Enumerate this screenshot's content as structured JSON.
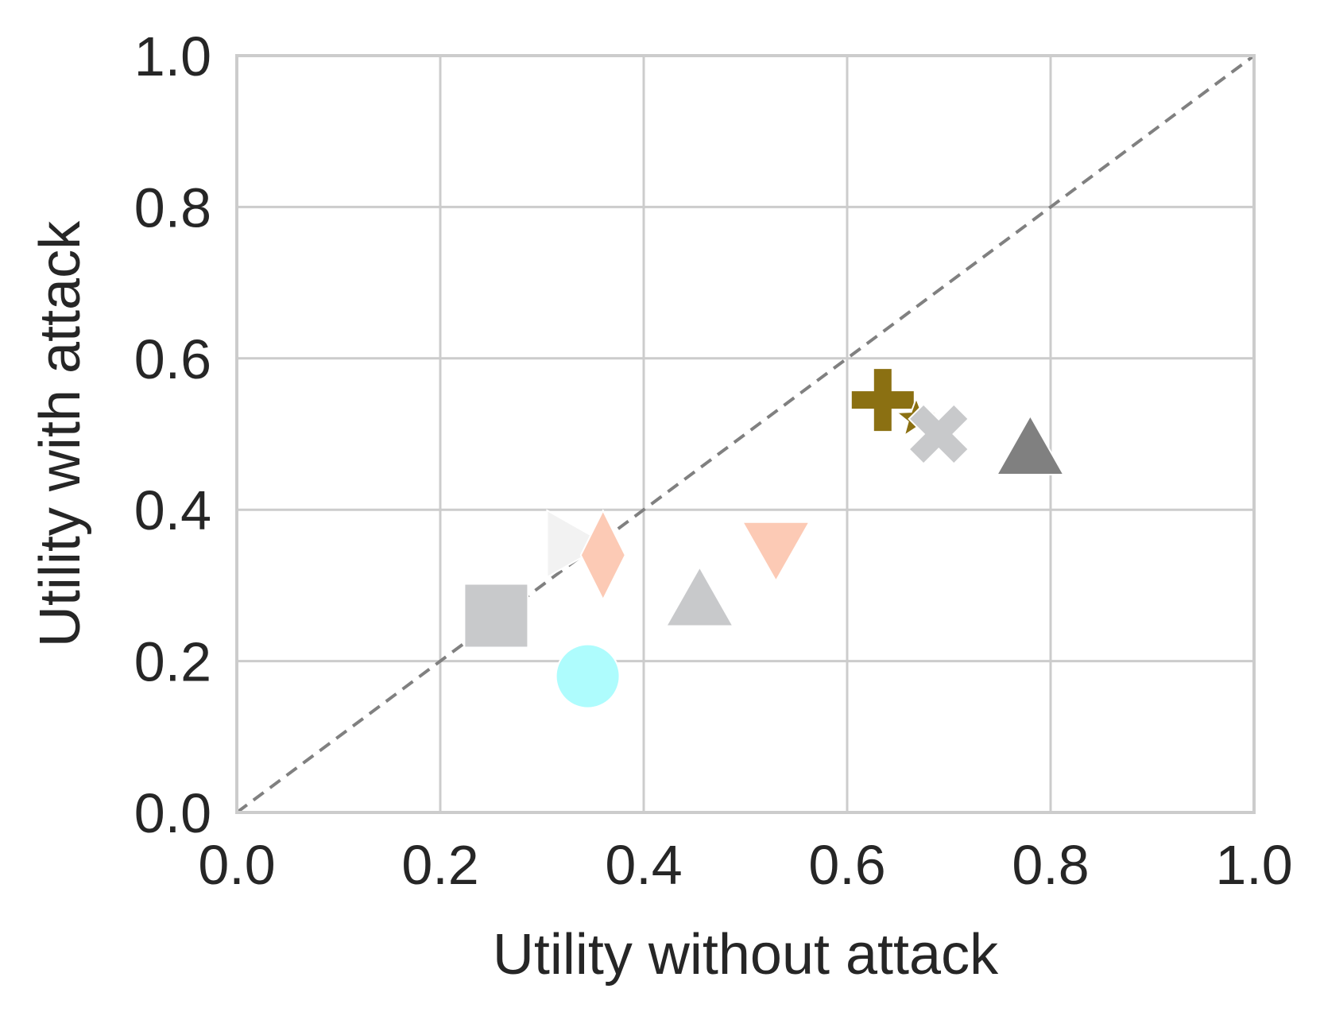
{
  "chart_data": {
    "type": "scatter",
    "xlabel": "Utility without attack",
    "ylabel": "Utility with attack",
    "xlim": [
      0.0,
      1.0
    ],
    "ylim": [
      0.0,
      1.0
    ],
    "xticks": [
      "0.0",
      "0.2",
      "0.4",
      "0.6",
      "0.8",
      "1.0"
    ],
    "yticks": [
      "0.0",
      "0.2",
      "0.4",
      "0.6",
      "0.8",
      "1.0"
    ],
    "grid": true,
    "reference_line": {
      "style": "dashed",
      "color": "#808080",
      "from": [
        0.0,
        0.0
      ],
      "to": [
        1.0,
        1.0
      ]
    },
    "points": [
      {
        "marker": "square",
        "color": "#c8c9cb",
        "x": 0.255,
        "y": 0.26
      },
      {
        "marker": "circle",
        "color": "#aefcfd",
        "x": 0.345,
        "y": 0.18
      },
      {
        "marker": "triangle-right",
        "color": "#f2f2f2",
        "x": 0.33,
        "y": 0.355
      },
      {
        "marker": "diamond",
        "color": "#fccab5",
        "x": 0.36,
        "y": 0.34
      },
      {
        "marker": "triangle-up",
        "color": "#c8c9cb",
        "x": 0.455,
        "y": 0.28
      },
      {
        "marker": "triangle-down",
        "color": "#fccab5",
        "x": 0.53,
        "y": 0.35
      },
      {
        "marker": "plus",
        "color": "#8b7012",
        "x": 0.635,
        "y": 0.545
      },
      {
        "marker": "star",
        "color": "#8b7012",
        "x": 0.668,
        "y": 0.52
      },
      {
        "marker": "x",
        "color": "#c8c9cb",
        "x": 0.69,
        "y": 0.5
      },
      {
        "marker": "triangle-up",
        "color": "#808080",
        "x": 0.78,
        "y": 0.48
      }
    ]
  }
}
